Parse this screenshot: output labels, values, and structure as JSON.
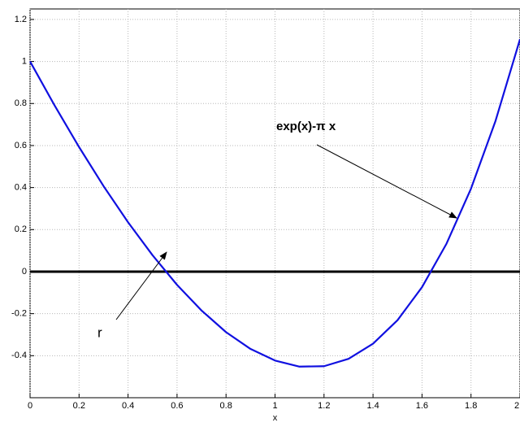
{
  "chart_data": {
    "type": "line",
    "x": [
      0,
      0.1,
      0.2,
      0.3,
      0.4,
      0.5,
      0.6,
      0.7,
      0.8,
      0.9,
      1.0,
      1.1,
      1.2,
      1.3,
      1.4,
      1.5,
      1.6,
      1.7,
      1.8,
      1.9,
      2.0
    ],
    "series": [
      {
        "color": "#1010e0",
        "values": [
          1,
          0.791,
          0.593,
          0.407,
          0.235,
          0.078,
          -0.063,
          -0.185,
          -0.288,
          -0.368,
          -0.423,
          -0.452,
          -0.45,
          -0.415,
          -0.343,
          -0.231,
          -0.074,
          0.133,
          0.395,
          0.717,
          1.106
        ]
      }
    ],
    "xlim": [
      0,
      2
    ],
    "ylim": [
      -0.6,
      1.25
    ],
    "xticks": [
      0,
      0.2,
      0.4,
      0.6,
      0.8,
      1,
      1.2,
      1.4,
      1.6,
      1.8,
      2
    ],
    "yticks": [
      -0.4,
      -0.2,
      0,
      0.2,
      0.4,
      0.6,
      0.8,
      1,
      1.2
    ],
    "xlabel": "x",
    "grid": true,
    "hline": {
      "value": 0,
      "color": "#000000"
    },
    "annotations": [
      "exp(x)-π x",
      "r"
    ]
  }
}
